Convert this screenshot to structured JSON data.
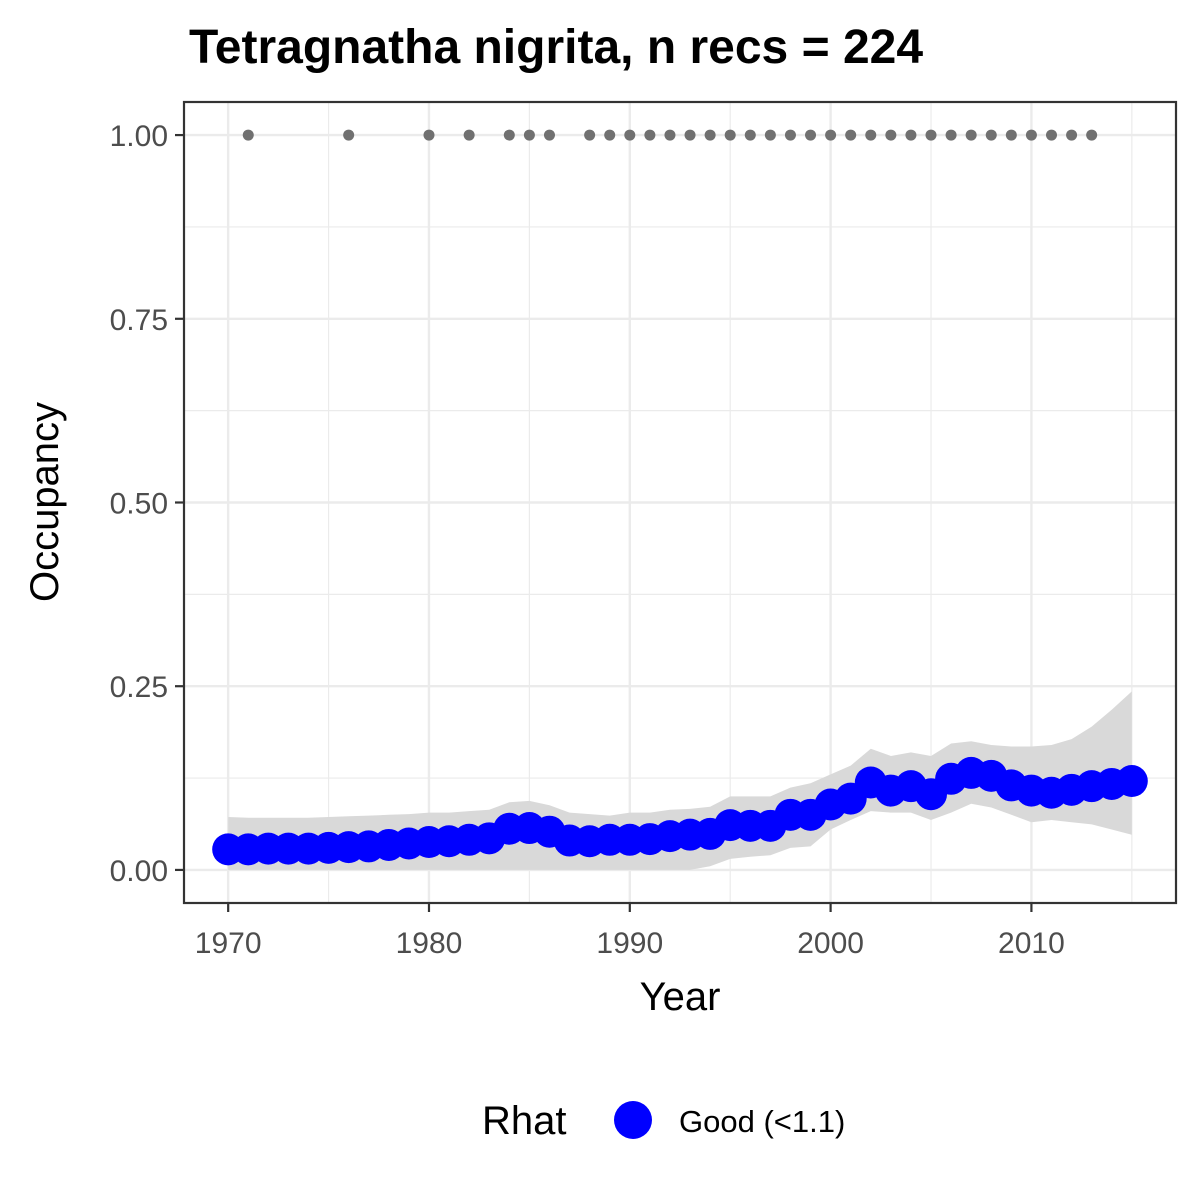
{
  "chart_data": {
    "type": "line",
    "title": "Tetragnatha nigrita, n recs = 224",
    "xlabel": "Year",
    "ylabel": "Occupancy",
    "xlim": [
      1967.8,
      2017.2
    ],
    "ylim": [
      -0.045,
      1.045
    ],
    "x_ticks": [
      1970,
      1980,
      1990,
      2000,
      2010
    ],
    "x_tick_labels": [
      "1970",
      "1980",
      "1990",
      "2000",
      "2010"
    ],
    "y_ticks": [
      0,
      0.25,
      0.5,
      0.75,
      1.0
    ],
    "y_tick_labels": [
      "0.00",
      "0.25",
      "0.50",
      "0.75",
      "1.00"
    ],
    "grid": true,
    "legend_position": "bottom",
    "legend": {
      "title": "Rhat",
      "entries": [
        {
          "label": "Good (<1.1)",
          "color": "#0000ff"
        }
      ]
    },
    "colors": {
      "point": "#0000ff",
      "ribbon": "#d9d9d9",
      "record_dot": "#707070",
      "grid": "#ebebeb",
      "frame": "#333333"
    },
    "series": [
      {
        "name": "Good (<1.1)",
        "x": [
          1970,
          1971,
          1972,
          1973,
          1974,
          1975,
          1976,
          1977,
          1978,
          1979,
          1980,
          1981,
          1982,
          1983,
          1984,
          1985,
          1986,
          1987,
          1988,
          1989,
          1990,
          1991,
          1992,
          1993,
          1994,
          1995,
          1996,
          1997,
          1998,
          1999,
          2000,
          2001,
          2002,
          2003,
          2004,
          2005,
          2006,
          2007,
          2008,
          2009,
          2010,
          2011,
          2012,
          2013,
          2014,
          2015
        ],
        "y": [
          0.028,
          0.028,
          0.029,
          0.029,
          0.029,
          0.03,
          0.031,
          0.032,
          0.034,
          0.036,
          0.038,
          0.039,
          0.041,
          0.043,
          0.056,
          0.057,
          0.052,
          0.04,
          0.039,
          0.041,
          0.041,
          0.042,
          0.046,
          0.048,
          0.049,
          0.061,
          0.06,
          0.06,
          0.075,
          0.075,
          0.089,
          0.097,
          0.119,
          0.108,
          0.114,
          0.103,
          0.124,
          0.132,
          0.128,
          0.115,
          0.108,
          0.105,
          0.109,
          0.114,
          0.117,
          0.121
        ],
        "lower": [
          0.0,
          0.0,
          0.0,
          0.0,
          0.0,
          0.0,
          0.0,
          0.0,
          0.0,
          0.0,
          0.0,
          0.0,
          0.0,
          0.0,
          0.0,
          0.0,
          0.0,
          0.0,
          0.0,
          0.0,
          0.0,
          0.0,
          0.0,
          0.0,
          0.005,
          0.015,
          0.018,
          0.02,
          0.03,
          0.032,
          0.055,
          0.068,
          0.08,
          0.078,
          0.078,
          0.068,
          0.078,
          0.09,
          0.085,
          0.075,
          0.065,
          0.068,
          0.065,
          0.062,
          0.055,
          0.048
        ],
        "upper": [
          0.072,
          0.071,
          0.071,
          0.071,
          0.071,
          0.072,
          0.073,
          0.074,
          0.075,
          0.076,
          0.078,
          0.078,
          0.08,
          0.082,
          0.092,
          0.094,
          0.088,
          0.078,
          0.076,
          0.074,
          0.078,
          0.078,
          0.082,
          0.083,
          0.086,
          0.1,
          0.1,
          0.1,
          0.112,
          0.118,
          0.13,
          0.142,
          0.165,
          0.155,
          0.16,
          0.155,
          0.172,
          0.175,
          0.17,
          0.168,
          0.168,
          0.17,
          0.178,
          0.195,
          0.218,
          0.243
        ]
      }
    ],
    "records": {
      "y": 1.0,
      "x": [
        1971,
        1976,
        1980,
        1982,
        1984,
        1985,
        1986,
        1988,
        1989,
        1990,
        1991,
        1992,
        1993,
        1994,
        1995,
        1996,
        1997,
        1998,
        1999,
        2000,
        2001,
        2002,
        2003,
        2004,
        2005,
        2006,
        2007,
        2008,
        2009,
        2010,
        2011,
        2012,
        2013
      ]
    }
  }
}
